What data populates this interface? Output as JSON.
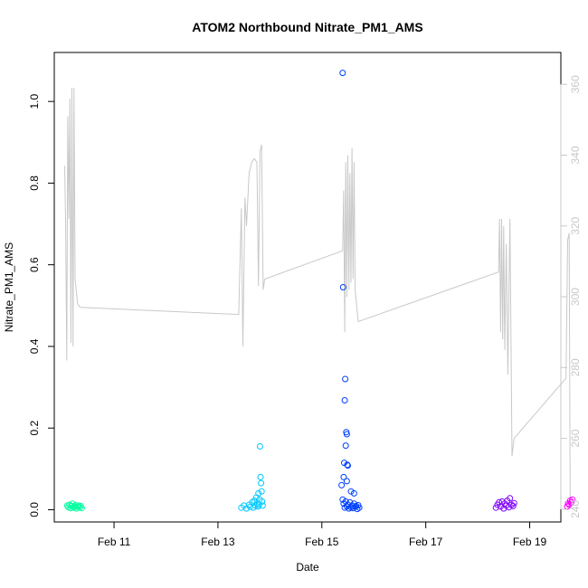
{
  "chart_data": {
    "type": "scatter",
    "title": "ATOM2 Northbound Nitrate_PM1_AMS",
    "xlabel": "Date",
    "ylabel": "Nitrate_PM1_AMS",
    "x_axis_unit": "days since Feb 10",
    "xlim": [
      -0.15,
      9.6
    ],
    "ylim": [
      -0.03,
      1.12
    ],
    "y2lim": [
      236.4,
      369.0
    ],
    "x_ticks": [
      {
        "label": "Feb 11",
        "value": 1
      },
      {
        "label": "Feb 13",
        "value": 3
      },
      {
        "label": "Feb 15",
        "value": 5
      },
      {
        "label": "Feb 17",
        "value": 7
      },
      {
        "label": "Feb 19",
        "value": 9
      }
    ],
    "y_ticks": [
      0.0,
      0.2,
      0.4,
      0.6,
      0.8,
      1.0
    ],
    "y_tick_labels": [
      "0.0",
      "0.2",
      "0.4",
      "0.6",
      "0.8",
      "1.0"
    ],
    "y2_ticks": [
      240,
      260,
      280,
      300,
      320,
      340,
      360
    ],
    "grid": false,
    "legend": "none",
    "colors": {
      "series1": "#00ffa0",
      "series2": "#00c8ff",
      "series3": "#0040ff",
      "series4": "#8000ff",
      "series5": "#ff00ff",
      "secondary_line": "#c8c8c8"
    },
    "series": [
      {
        "color": "#00ffa0",
        "points": [
          [
            0.1,
            0.01
          ],
          [
            0.12,
            0.006
          ],
          [
            0.14,
            0.012
          ],
          [
            0.16,
            0.004
          ],
          [
            0.18,
            0.009
          ],
          [
            0.2,
            0.015
          ],
          [
            0.22,
            0.005
          ],
          [
            0.24,
            0.008
          ],
          [
            0.26,
            0.011
          ],
          [
            0.28,
            0.003
          ],
          [
            0.3,
            0.007
          ],
          [
            0.32,
            0.01
          ],
          [
            0.34,
            0.006
          ],
          [
            0.36,
            0.009
          ],
          [
            0.38,
            0.004
          ]
        ]
      },
      {
        "color": "#00c8ff",
        "points": [
          [
            3.45,
            0.005
          ],
          [
            3.5,
            0.01
          ],
          [
            3.55,
            0.003
          ],
          [
            3.6,
            0.012
          ],
          [
            3.62,
            0.007
          ],
          [
            3.66,
            0.018
          ],
          [
            3.68,
            0.005
          ],
          [
            3.7,
            0.022
          ],
          [
            3.72,
            0.01
          ],
          [
            3.74,
            0.03
          ],
          [
            3.76,
            0.015
          ],
          [
            3.77,
            0.008
          ],
          [
            3.78,
            0.04
          ],
          [
            3.79,
            0.012
          ],
          [
            3.8,
            0.025
          ],
          [
            3.81,
            0.155
          ],
          [
            3.82,
            0.08
          ],
          [
            3.83,
            0.065
          ],
          [
            3.84,
            0.045
          ],
          [
            3.85,
            0.02
          ],
          [
            3.86,
            0.01
          ]
        ]
      },
      {
        "color": "#0040ff",
        "points": [
          [
            5.4,
            1.07
          ],
          [
            5.41,
            0.545
          ],
          [
            5.45,
            0.32
          ],
          [
            5.44,
            0.268
          ],
          [
            5.47,
            0.19
          ],
          [
            5.48,
            0.185
          ],
          [
            5.46,
            0.157
          ],
          [
            5.43,
            0.115
          ],
          [
            5.49,
            0.11
          ],
          [
            5.5,
            0.108
          ],
          [
            5.42,
            0.08
          ],
          [
            5.48,
            0.07
          ],
          [
            5.38,
            0.06
          ],
          [
            5.56,
            0.045
          ],
          [
            5.62,
            0.04
          ],
          [
            5.4,
            0.025
          ],
          [
            5.42,
            0.015
          ],
          [
            5.44,
            0.005
          ],
          [
            5.46,
            0.02
          ],
          [
            5.48,
            0.008
          ],
          [
            5.5,
            0.012
          ],
          [
            5.52,
            0.003
          ],
          [
            5.54,
            0.018
          ],
          [
            5.56,
            0.006
          ],
          [
            5.58,
            0.01
          ],
          [
            5.6,
            0.004
          ],
          [
            5.62,
            0.015
          ],
          [
            5.64,
            0.007
          ],
          [
            5.66,
            0.009
          ],
          [
            5.68,
            0.002
          ],
          [
            5.7,
            0.011
          ],
          [
            5.72,
            0.005
          ]
        ]
      },
      {
        "color": "#8000ff",
        "points": [
          [
            8.35,
            0.005
          ],
          [
            8.38,
            0.012
          ],
          [
            8.41,
            0.018
          ],
          [
            8.44,
            0.008
          ],
          [
            8.47,
            0.02
          ],
          [
            8.5,
            0.003
          ],
          [
            8.52,
            0.015
          ],
          [
            8.55,
            0.01
          ],
          [
            8.57,
            0.022
          ],
          [
            8.6,
            0.006
          ],
          [
            8.62,
            0.028
          ],
          [
            8.65,
            0.012
          ],
          [
            8.68,
            0.009
          ],
          [
            8.7,
            0.016
          ]
        ]
      },
      {
        "color": "#ff00ff",
        "points": [
          [
            9.72,
            0.008
          ],
          [
            9.74,
            0.015
          ],
          [
            9.76,
            0.012
          ],
          [
            9.78,
            0.022
          ],
          [
            9.8,
            0.018
          ],
          [
            9.82,
            0.025
          ]
        ]
      }
    ],
    "secondary_series": {
      "color": "#c8c8c8",
      "points": [
        [
          0.05,
          337
        ],
        [
          0.07,
          320
        ],
        [
          0.09,
          282
        ],
        [
          0.11,
          351
        ],
        [
          0.13,
          322
        ],
        [
          0.15,
          356
        ],
        [
          0.17,
          287
        ],
        [
          0.19,
          359
        ],
        [
          0.21,
          286
        ],
        [
          0.23,
          359
        ],
        [
          0.25,
          305
        ],
        [
          0.3,
          298
        ],
        [
          0.35,
          297
        ],
        [
          3.4,
          295
        ],
        [
          3.45,
          325
        ],
        [
          3.48,
          286
        ],
        [
          3.52,
          328
        ],
        [
          3.55,
          320
        ],
        [
          3.6,
          335
        ],
        [
          3.65,
          338
        ],
        [
          3.7,
          339
        ],
        [
          3.75,
          338
        ],
        [
          3.78,
          303
        ],
        [
          3.81,
          341
        ],
        [
          3.84,
          343
        ],
        [
          3.87,
          302
        ],
        [
          3.9,
          305
        ],
        [
          5.4,
          313
        ],
        [
          5.42,
          330
        ],
        [
          5.44,
          290
        ],
        [
          5.46,
          338
        ],
        [
          5.48,
          300
        ],
        [
          5.5,
          340
        ],
        [
          5.52,
          302
        ],
        [
          5.54,
          335
        ],
        [
          5.56,
          304
        ],
        [
          5.58,
          342
        ],
        [
          5.6,
          305
        ],
        [
          5.62,
          338
        ],
        [
          5.64,
          302
        ],
        [
          5.7,
          293
        ],
        [
          8.4,
          307
        ],
        [
          8.42,
          322
        ],
        [
          8.44,
          290
        ],
        [
          8.46,
          322
        ],
        [
          8.48,
          288
        ],
        [
          8.5,
          320
        ],
        [
          8.52,
          285
        ],
        [
          8.55,
          315
        ],
        [
          8.58,
          278
        ],
        [
          8.62,
          322
        ],
        [
          8.66,
          255
        ],
        [
          8.7,
          260
        ],
        [
          9.7,
          277
        ],
        [
          9.73,
          316
        ],
        [
          9.76,
          318
        ],
        [
          9.78,
          240
        ]
      ]
    }
  }
}
